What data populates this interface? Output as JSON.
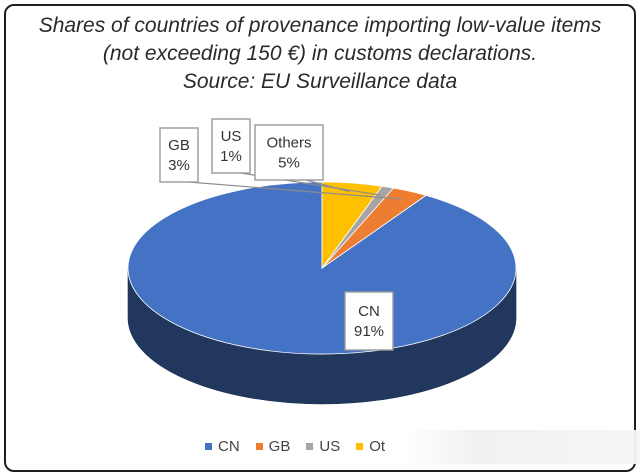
{
  "chart_data": {
    "type": "pie",
    "style": "3d",
    "title": [
      "Shares of countries of provenance importing low-value items",
      "(not exceeding 150 €) in customs declarations.",
      "Source: EU Surveillance data"
    ],
    "categories": [
      "CN",
      "GB",
      "US",
      "Others"
    ],
    "values": [
      91,
      3,
      1,
      5
    ],
    "data_labels": [
      {
        "category": "CN",
        "value": "91%"
      },
      {
        "category": "GB",
        "value": "3%"
      },
      {
        "category": "US",
        "value": "1%"
      },
      {
        "category": "Others",
        "value": "5%"
      }
    ],
    "colors": [
      "#4472c4",
      "#ed7d31",
      "#a5a5a5",
      "#ffc000"
    ],
    "legend": {
      "position": "bottom",
      "entries": [
        "CN",
        "GB",
        "US",
        "Ot"
      ]
    }
  }
}
